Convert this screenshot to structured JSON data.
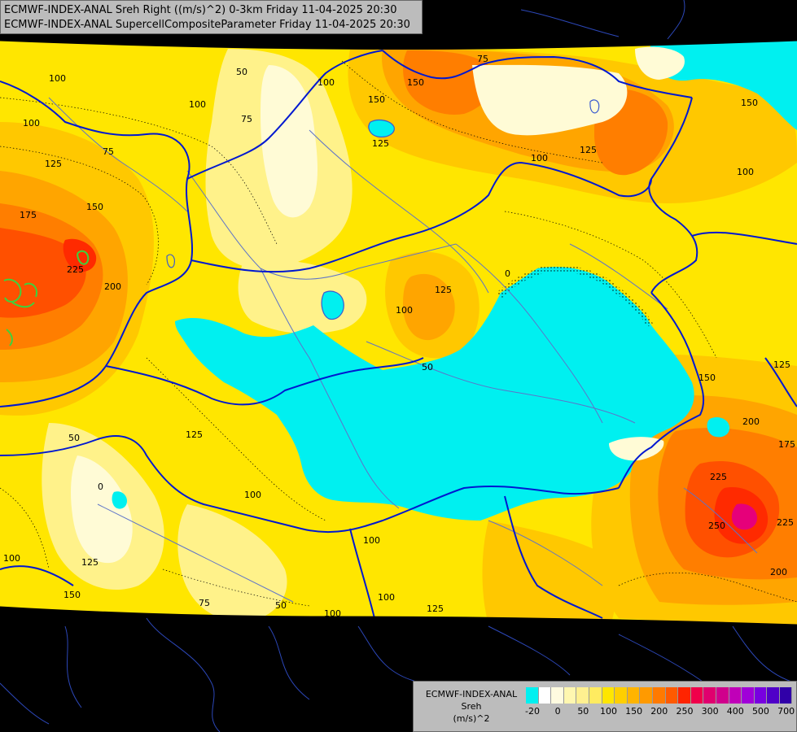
{
  "header": {
    "line1": "ECMWF-INDEX-ANAL Sreh Right ((m/s)^2) 0-3km Friday 11-04-2025 20:30",
    "line2": "ECMWF-INDEX-ANAL SupercellCompositeParameter Friday 11-04-2025 20:30"
  },
  "legend": {
    "title_line1": "ECMWF-INDEX-ANAL",
    "title_line2": "Sreh",
    "unit": "(m/s)^2",
    "swatch_colors": [
      "#00f0f0",
      "#ffffff",
      "#fffbe0",
      "#fff7b0",
      "#fff090",
      "#ffeb60",
      "#ffe600",
      "#ffcf00",
      "#ffb400",
      "#ff9a00",
      "#ff7a00",
      "#ff5a00",
      "#ff2400",
      "#f0004a",
      "#e0006e",
      "#d0008c",
      "#c000b8",
      "#a000d8",
      "#7800e0",
      "#5000c8",
      "#3000a8"
    ],
    "tick_labels": [
      "-20",
      "0",
      "50",
      "100",
      "150",
      "200",
      "250",
      "300",
      "400",
      "500",
      "700"
    ]
  },
  "map": {
    "contour_labels": [
      "100",
      "50",
      "100",
      "75",
      "100",
      "125",
      "100",
      "150",
      "75",
      "125",
      "175",
      "150",
      "225",
      "200",
      "75",
      "125",
      "100",
      "125",
      "100",
      "150",
      "100",
      "150",
      "125",
      "0",
      "50",
      "125",
      "150",
      "200",
      "175",
      "225",
      "250",
      "225",
      "200",
      "50",
      "0",
      "100",
      "125",
      "100",
      "150",
      "75",
      "50",
      "100",
      "100",
      "125",
      "100"
    ],
    "colors": {
      "low": "#00f0f0",
      "pale": "#fffbd6",
      "light_yellow": "#fff28a",
      "yellow": "#ffe600",
      "amber": "#ffc800",
      "orange": "#ffa500",
      "dark_orange": "#ff7e00",
      "red_orange": "#ff5000",
      "red": "#ff2a00",
      "magenta": "#e6007a",
      "border": "#0018d0",
      "river": "#5d73c9",
      "land_outline": "#3a5ad0",
      "background": "#000000"
    }
  }
}
